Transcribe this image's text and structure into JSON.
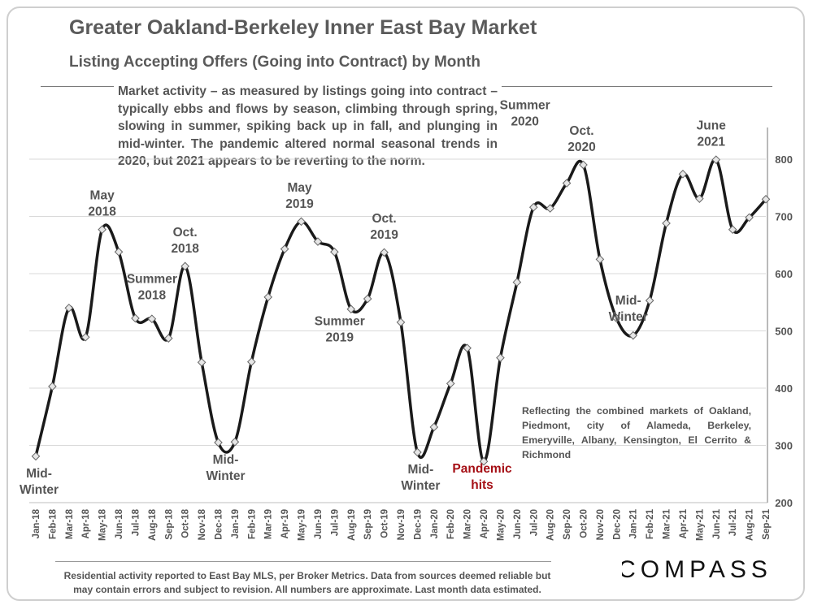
{
  "title": "Greater Oakland-Berkeley Inner East Bay Market",
  "subtitle": "Listing Accepting Offers (Going into Contract) by Month",
  "description": "Market activity – as measured by listings going into contract – typically ebbs and flows by season, climbing through spring, slowing in summer, spiking back up in fall, and plunging in mid-winter. The pandemic altered normal seasonal trends in 2020, but 2021 appears to be reverting to the norm.",
  "note": "Reflecting the combined markets of Oakland, Piedmont, city of Alameda, Berkeley, Emeryville, Albany, Kensington, El Cerrito & Richmond",
  "footer": "Residential activity reported to East Bay MLS, per Broker Metrics. Data from sources deemed reliable but may contain errors and subject to revision. All numbers are approximate. Last month data estimated.",
  "brand": "COMPASS",
  "colors": {
    "line": "#1a1a1a",
    "text": "#555555",
    "highlight": "#a50f15",
    "grid": "#d9d9d9",
    "marker_fill": "#e6e6e6"
  },
  "chart_data": {
    "type": "line",
    "title": "Listing Accepting Offers (Going into Contract) by Month",
    "xlabel": "",
    "ylabel": "",
    "ylim": [
      200,
      850
    ],
    "yticks": [
      200,
      300,
      400,
      500,
      600,
      700,
      800
    ],
    "grid": true,
    "categories": [
      "Jan-18",
      "Feb-18",
      "Mar-18",
      "Apr-18",
      "May-18",
      "Jun-18",
      "Jul-18",
      "Aug-18",
      "Sep-18",
      "Oct-18",
      "Nov-18",
      "Dec-18",
      "Jan-19",
      "Feb-19",
      "Mar-19",
      "Apr-19",
      "May-19",
      "Jun-19",
      "Jul-19",
      "Aug-19",
      "Sep-19",
      "Oct-19",
      "Nov-19",
      "Dec-19",
      "Jan-20",
      "Feb-20",
      "Mar-20",
      "Apr-20",
      "May-20",
      "Jun-20",
      "Jul-20",
      "Aug-20",
      "Sep-20",
      "Oct-20",
      "Nov-20",
      "Dec-20",
      "Jan-21",
      "Feb-21",
      "Mar-21",
      "Apr-21",
      "May-21",
      "Jun-21",
      "Jul-21",
      "Aug-21",
      "Sep-21"
    ],
    "series": [
      {
        "name": "Listings Accepting Offers",
        "values": [
          281,
          403,
          540,
          489,
          677,
          638,
          522,
          521,
          487,
          613,
          445,
          305,
          306,
          446,
          559,
          643,
          691,
          656,
          638,
          538,
          556,
          637,
          515,
          288,
          332,
          408,
          470,
          272,
          453,
          585,
          716,
          714,
          758,
          790,
          625,
          522,
          492,
          553,
          688,
          774,
          731,
          799,
          677,
          698,
          730
        ]
      }
    ],
    "annotations": [
      {
        "label": "Mid-\nWinter",
        "index": 0
      },
      {
        "label": "May\n2018",
        "index": 4
      },
      {
        "label": "Summer\n2018",
        "index": 7
      },
      {
        "label": "Oct.\n2018",
        "index": 9
      },
      {
        "label": "Mid-\nWinter",
        "index": 11
      },
      {
        "label": "May\n2019",
        "index": 16
      },
      {
        "label": "Summer\n2019",
        "index": 19
      },
      {
        "label": "Oct.\n2019",
        "index": 21
      },
      {
        "label": "Mid-\nWinter",
        "index": 23
      },
      {
        "label": "Pandemic\nhits",
        "index": 27,
        "highlight": true
      },
      {
        "label": "Summer\n2020",
        "index": 31
      },
      {
        "label": "Oct.\n2020",
        "index": 33
      },
      {
        "label": "Mid-\nWinter",
        "index": 36
      },
      {
        "label": "June\n2021",
        "index": 41
      }
    ]
  }
}
